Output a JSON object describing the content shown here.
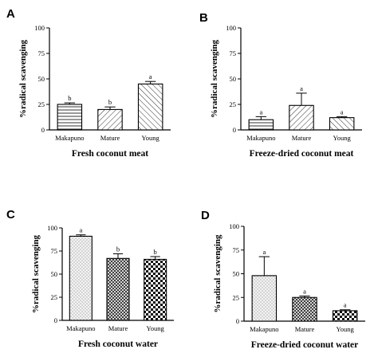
{
  "chart_data": [
    {
      "type": "bar",
      "panel": "A",
      "xlabel": "Fresh coconut meat",
      "ylabel": "%radical scavenging",
      "ylim": [
        0,
        100
      ],
      "yticks": [
        0,
        25,
        50,
        75,
        100
      ],
      "categories": [
        "Makapuno",
        "Mature",
        "Young"
      ],
      "values": [
        25,
        20,
        45
      ],
      "errors": [
        1.5,
        2.5,
        2.5
      ],
      "significance": [
        "b",
        "b",
        "a"
      ],
      "patterns": [
        "hlines",
        "diag",
        "diag-back"
      ]
    },
    {
      "type": "bar",
      "panel": "B",
      "xlabel": "Freeze-dried coconut meat",
      "ylabel": "%radical scavenging",
      "ylim": [
        0,
        100
      ],
      "yticks": [
        0,
        25,
        50,
        75,
        100
      ],
      "categories": [
        "Makapuno",
        "Mature",
        "Young"
      ],
      "values": [
        10,
        24,
        12
      ],
      "errors": [
        3,
        12,
        1
      ],
      "significance": [
        "a",
        "a",
        "a"
      ],
      "patterns": [
        "hlines",
        "diag",
        "diag-back"
      ]
    },
    {
      "type": "bar",
      "panel": "C",
      "xlabel": "Fresh coconut water",
      "ylabel": "%radical scavenging",
      "ylim": [
        0,
        100
      ],
      "yticks": [
        0,
        25,
        50,
        75,
        100
      ],
      "categories": [
        "Makapuno",
        "Mature",
        "Young"
      ],
      "values": [
        91,
        67,
        66
      ],
      "errors": [
        1.5,
        5,
        3
      ],
      "significance": [
        "a",
        "b",
        "b"
      ],
      "patterns": [
        "dots",
        "crosshatch",
        "checker"
      ]
    },
    {
      "type": "bar",
      "panel": "D",
      "xlabel": "Freeze-dried coconut water",
      "ylabel": "%radical scavenging",
      "ylim": [
        0,
        100
      ],
      "yticks": [
        0,
        25,
        50,
        75,
        100
      ],
      "categories": [
        "Makapuno",
        "Mature",
        "Young"
      ],
      "values": [
        48,
        25,
        11
      ],
      "errors": [
        20,
        1.5,
        1
      ],
      "significance": [
        "a",
        "a",
        "a"
      ],
      "patterns": [
        "dots",
        "crosshatch",
        "checker"
      ]
    }
  ]
}
